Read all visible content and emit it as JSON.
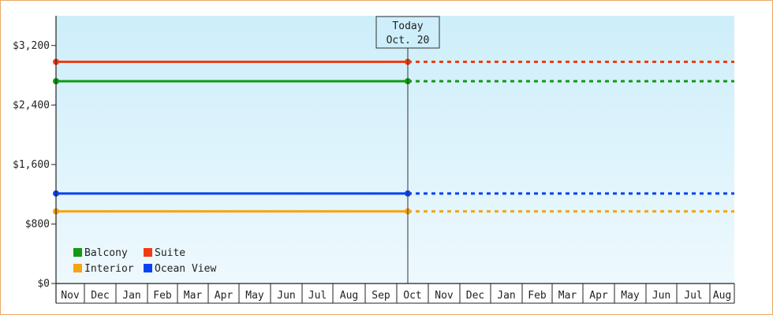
{
  "chart_data": {
    "type": "line",
    "y_axis": {
      "ylim": [
        0,
        3600
      ],
      "ticks": [
        0,
        800,
        1600,
        2400,
        3200
      ],
      "tick_labels": [
        "$0",
        "$800",
        "$1,600",
        "$2,400",
        "$3,200"
      ]
    },
    "x_axis": {
      "categories": [
        "Nov",
        "Dec",
        "Jan",
        "Feb",
        "Mar",
        "Apr",
        "May",
        "Jun",
        "Jul",
        "Aug",
        "Sep",
        "Oct",
        "Nov",
        "Dec",
        "Jan",
        "Feb",
        "Mar",
        "Apr",
        "May",
        "Jun",
        "Jul",
        "Aug"
      ]
    },
    "today_marker": {
      "line1": "Today",
      "line2": "Oct. 20",
      "category_index": 11.35
    },
    "series": [
      {
        "name": "Suite",
        "color": "#f03c14",
        "value": 2980
      },
      {
        "name": "Balcony",
        "color": "#139a13",
        "value": 2720
      },
      {
        "name": "Ocean View",
        "color": "#0a44f0",
        "value": 1210
      },
      {
        "name": "Interior",
        "color": "#f5a413",
        "value": 970
      }
    ],
    "legend": {
      "placement": "bottom-left",
      "order": [
        "Balcony",
        "Suite",
        "Interior",
        "Ocean View"
      ]
    },
    "style": {
      "plot_gradient_top": "#cdeefa",
      "plot_gradient_bottom": "#eef9fd",
      "axis_color": "#222222",
      "projection": "dashed"
    }
  }
}
